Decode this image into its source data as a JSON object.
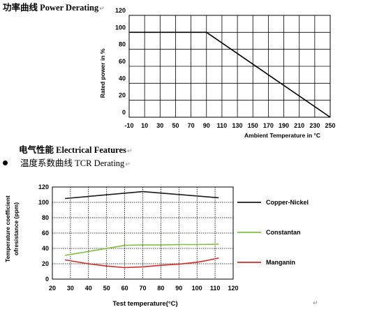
{
  "headings": {
    "power_derating_cn": "功率曲线",
    "power_derating_en": "Power Derating",
    "electrical_features_cn": "电气性能",
    "electrical_features_en": "Electrical Features",
    "tcr_derating_cn": "温度系数曲线",
    "tcr_derating_en": "TCR Derating",
    "paragraph_mark": "↵"
  },
  "chart_data": [
    {
      "type": "line",
      "xlabel": "Ambient Temperature in °C",
      "ylabel": "Rated power in %",
      "xlim": [
        -10,
        250
      ],
      "ylim": [
        0,
        120
      ],
      "x_ticks": [
        "-10",
        "10",
        "30",
        "50",
        "70",
        "90",
        "110",
        "130",
        "150",
        "170",
        "190",
        "210",
        "230",
        "250"
      ],
      "y_ticks": [
        "0",
        "20",
        "40",
        "60",
        "80",
        "100",
        "120"
      ],
      "grid": true,
      "series": [
        {
          "x": [
            -10,
            90,
            250
          ],
          "y": [
            100,
            100,
            0
          ],
          "color": "#000000"
        }
      ]
    },
    {
      "type": "line",
      "xlabel": "Test temperature(°C)",
      "ylabel_line1": "Temperature coefficient",
      "ylabel_line2": "ofresistance (ppm)",
      "xlim": [
        20,
        120
      ],
      "ylim": [
        0,
        120
      ],
      "x_ticks": [
        "20",
        "30",
        "40",
        "50",
        "60",
        "70",
        "80",
        "90",
        "100",
        "110",
        "120"
      ],
      "y_ticks": [
        "0",
        "20",
        "40",
        "60",
        "80",
        "100",
        "120"
      ],
      "grid": true,
      "legend_position": "right",
      "series": [
        {
          "name": "Copper-Nickel",
          "color": "#1a1a1a",
          "x": [
            27,
            70,
            112
          ],
          "y": [
            105,
            114,
            106
          ]
        },
        {
          "name": "Constantan",
          "color": "#7fc241",
          "x": [
            27,
            35,
            45,
            55,
            60,
            70,
            80,
            90,
            100,
            112
          ],
          "y": [
            31,
            34,
            38,
            42,
            44,
            44.5,
            44.5,
            45,
            45,
            45.5
          ]
        },
        {
          "name": "Manganin",
          "color": "#d42b27",
          "x": [
            27,
            40,
            50,
            60,
            70,
            80,
            90,
            100,
            105,
            112
          ],
          "y": [
            25,
            20,
            17,
            15,
            16,
            18,
            19.5,
            22,
            24,
            27.5
          ]
        }
      ]
    }
  ]
}
